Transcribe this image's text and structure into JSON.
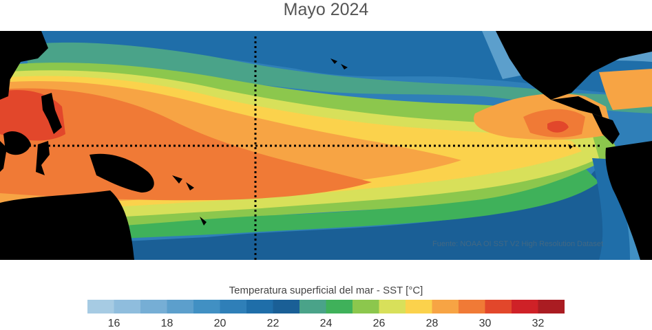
{
  "title": "Mayo 2024",
  "source": "Fuente: NOAA OI SST V2 High Resolution Dataset",
  "colorbar": {
    "label": "Temperatura superficial del mar - SST  [°C]",
    "colors": [
      "#a6cbe3",
      "#8fbddd",
      "#76aed5",
      "#5c9fcc",
      "#4190c3",
      "#2f7fb8",
      "#1f6ea9",
      "#1a5f96",
      "#4aa389",
      "#3fb15a",
      "#8cc74d",
      "#d8e05a",
      "#fbd24c",
      "#f7a444",
      "#f07a36",
      "#e2472b",
      "#cf2127",
      "#aa1c22"
    ],
    "min": 15,
    "max": 33,
    "ticks": [
      {
        "value": 16,
        "label": "16"
      },
      {
        "value": 18,
        "label": "18"
      },
      {
        "value": 20,
        "label": "20"
      },
      {
        "value": 22,
        "label": "22"
      },
      {
        "value": 24,
        "label": "24"
      },
      {
        "value": 26,
        "label": "26"
      },
      {
        "value": 28,
        "label": "28"
      },
      {
        "value": 30,
        "label": "30"
      },
      {
        "value": 32,
        "label": "32"
      }
    ]
  },
  "map": {
    "region": "Pacifico tropical",
    "land_color": "#000000",
    "reference_lines": [
      "ecuador",
      "meridiano-180"
    ]
  }
}
